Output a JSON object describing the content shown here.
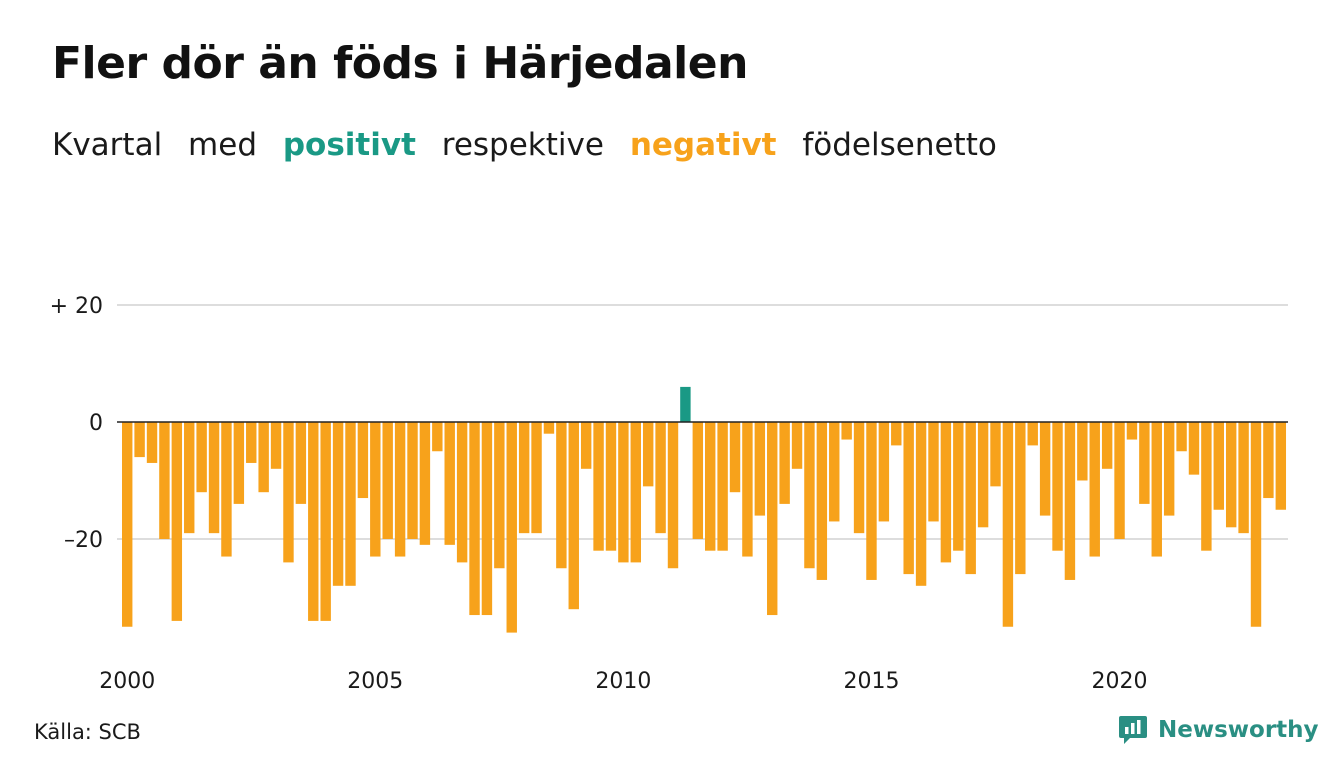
{
  "title": "Fler dör än föds i Härjedalen",
  "subtitle": {
    "word1": "Kvartal",
    "word2": "med",
    "positive": "positivt",
    "word3": "respektive",
    "negative": "negativt",
    "word4": "födelsenetto"
  },
  "source": "Källa: SCB",
  "brand": {
    "name": "Newsworthy",
    "logo_icon": "newsworthy-logo-icon"
  },
  "colors": {
    "positive": "#1a9985",
    "negative": "#f7a21b",
    "grid": "#dddddd",
    "zero_line": "#222222",
    "text": "#1a1a1a"
  },
  "chart_data": {
    "type": "bar",
    "title": "Fler dör än föds i Härjedalen",
    "subtitle": "Kvartal med positivt respektive negativt födelsenetto",
    "x_ticks": [
      "2000",
      "2005",
      "2010",
      "2015",
      "2020"
    ],
    "x_tick_start_index": [
      0,
      20,
      40,
      60,
      80
    ],
    "y_ticks": [
      {
        "value": 20,
        "label": "+ 20"
      },
      {
        "value": 0,
        "label": "0"
      },
      {
        "value": -20,
        "label": "–20"
      }
    ],
    "ylim": [
      -37,
      20
    ],
    "grid": true,
    "first_period": "2000 Q1",
    "values": [
      -35,
      -6,
      -7,
      -20,
      -34,
      -19,
      -12,
      -19,
      -23,
      -14,
      -7,
      -12,
      -8,
      -24,
      -14,
      -34,
      -34,
      -28,
      -28,
      -13,
      -23,
      -20,
      -23,
      -20,
      -21,
      -5,
      -21,
      -24,
      -33,
      -33,
      -25,
      -36,
      -19,
      -19,
      -2,
      -25,
      -32,
      -8,
      -22,
      -22,
      -24,
      -24,
      -11,
      -19,
      -25,
      6,
      -20,
      -22,
      -22,
      -12,
      -23,
      -16,
      -33,
      -14,
      -8,
      -25,
      -27,
      -17,
      -3,
      -19,
      -27,
      -17,
      -4,
      -26,
      -28,
      -17,
      -24,
      -22,
      -26,
      -18,
      -11,
      -35,
      -26,
      -4,
      -16,
      -22,
      -27,
      -10,
      -23,
      -8,
      -20,
      -3,
      -14,
      -23,
      -16,
      -5,
      -9,
      -22,
      -15,
      -18,
      -19,
      -35,
      -13,
      -15
    ]
  }
}
